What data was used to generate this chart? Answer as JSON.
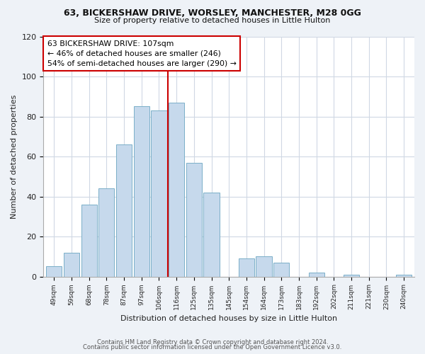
{
  "title1": "63, BICKERSHAW DRIVE, WORSLEY, MANCHESTER, M28 0GG",
  "title2": "Size of property relative to detached houses in Little Hulton",
  "xlabel": "Distribution of detached houses by size in Little Hulton",
  "ylabel": "Number of detached properties",
  "bin_labels": [
    "49sqm",
    "59sqm",
    "68sqm",
    "78sqm",
    "87sqm",
    "97sqm",
    "106sqm",
    "116sqm",
    "125sqm",
    "135sqm",
    "145sqm",
    "154sqm",
    "164sqm",
    "173sqm",
    "183sqm",
    "192sqm",
    "202sqm",
    "211sqm",
    "221sqm",
    "230sqm",
    "240sqm"
  ],
  "bar_values": [
    5,
    12,
    36,
    44,
    66,
    85,
    83,
    87,
    57,
    42,
    0,
    9,
    10,
    7,
    0,
    2,
    0,
    1,
    0,
    0,
    1
  ],
  "bar_color": "#c6d9ec",
  "bar_edge_color": "#7aafc8",
  "vline_x": 6.5,
  "vline_color": "#cc0000",
  "annotation_line1": "63 BICKERSHAW DRIVE: 107sqm",
  "annotation_line2": "← 46% of detached houses are smaller (246)",
  "annotation_line3": "54% of semi-detached houses are larger (290) →",
  "annotation_box_color": "#ffffff",
  "annotation_box_edge": "#cc0000",
  "ylim": [
    0,
    120
  ],
  "yticks": [
    0,
    20,
    40,
    60,
    80,
    100,
    120
  ],
  "footer1": "Contains HM Land Registry data © Crown copyright and database right 2024.",
  "footer2": "Contains public sector information licensed under the Open Government Licence v3.0.",
  "background_color": "#eef2f7",
  "plot_bg_color": "#ffffff",
  "grid_color": "#d0d8e4"
}
